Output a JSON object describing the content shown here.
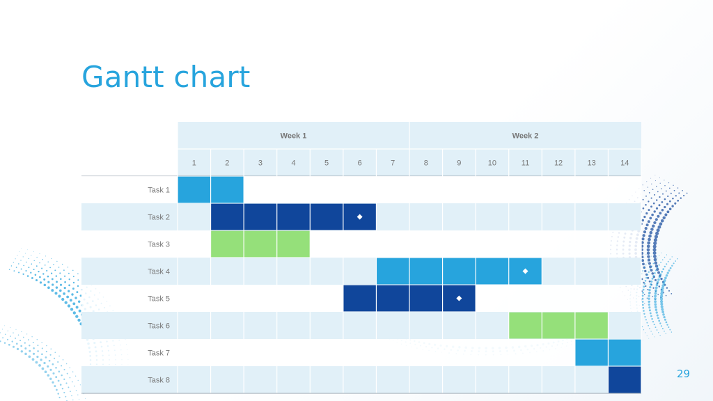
{
  "slide": {
    "title": "Gantt chart",
    "page_number": "29"
  },
  "colors": {
    "title": "#27a4dd",
    "header_fill": "#e1f0f8",
    "row_alt_fill": "#e1f0f8",
    "grid_line": "#ffffff",
    "text": "#777777",
    "light_blue_bar": "#27a4dd",
    "dark_blue_bar": "#10469b",
    "green_bar": "#95e07a",
    "milestone": "#ffffff"
  },
  "chart_data": {
    "type": "gantt",
    "title": "Gantt chart",
    "week_groups": [
      {
        "label": "Week 1",
        "start_day": 1,
        "end_day": 7
      },
      {
        "label": "Week 2",
        "start_day": 8,
        "end_day": 14
      }
    ],
    "days": [
      "1",
      "2",
      "3",
      "4",
      "5",
      "6",
      "7",
      "8",
      "9",
      "10",
      "11",
      "12",
      "13",
      "14"
    ],
    "tasks": [
      {
        "name": "Task 1",
        "start": 1,
        "end": 2,
        "color": "light_blue_bar",
        "milestone_day": null
      },
      {
        "name": "Task 2",
        "start": 2,
        "end": 6,
        "color": "dark_blue_bar",
        "milestone_day": 6
      },
      {
        "name": "Task 3",
        "start": 2,
        "end": 4,
        "color": "green_bar",
        "milestone_day": null
      },
      {
        "name": "Task 4",
        "start": 7,
        "end": 11,
        "color": "light_blue_bar",
        "milestone_day": 11
      },
      {
        "name": "Task 5",
        "start": 6,
        "end": 9,
        "color": "dark_blue_bar",
        "milestone_day": 9
      },
      {
        "name": "Task 6",
        "start": 11,
        "end": 13,
        "color": "green_bar",
        "milestone_day": null
      },
      {
        "name": "Task 7",
        "start": 13,
        "end": 14,
        "color": "light_blue_bar",
        "milestone_day": null
      },
      {
        "name": "Task 8",
        "start": 14,
        "end": 14,
        "color": "dark_blue_bar",
        "milestone_day": null
      }
    ]
  }
}
